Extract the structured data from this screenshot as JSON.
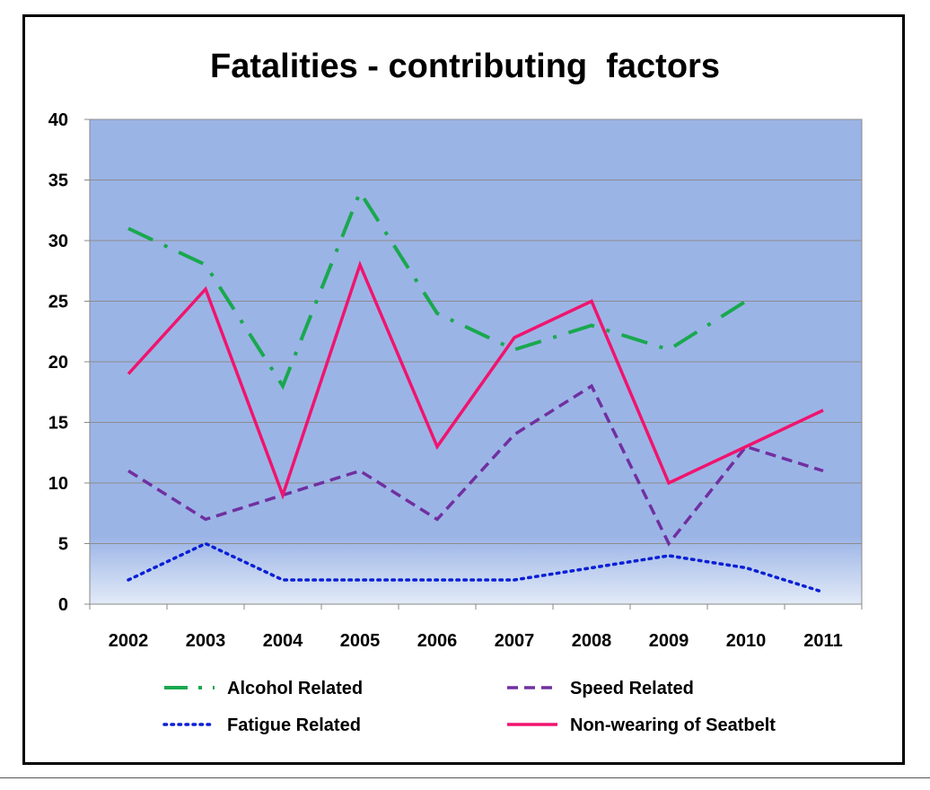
{
  "chart_data": {
    "type": "line",
    "title": "Fatalities - contributing  factors",
    "xlabel": "",
    "ylabel": "",
    "categories": [
      "2002",
      "2003",
      "2004",
      "2005",
      "2006",
      "2007",
      "2008",
      "2009",
      "2010",
      "2011"
    ],
    "ylim": [
      0,
      40
    ],
    "yticks": [
      0,
      5,
      10,
      15,
      20,
      25,
      30,
      35,
      40
    ],
    "grid": true,
    "legend_position": "bottom",
    "series": [
      {
        "name": "Alcohol Related",
        "color": "#1aa84f",
        "dash": "dash-dot",
        "values": [
          31,
          28,
          18,
          34,
          24,
          21,
          23,
          21,
          25,
          null
        ]
      },
      {
        "name": "Speed Related",
        "color": "#7030a0",
        "dash": "dash",
        "values": [
          11,
          7,
          9,
          11,
          7,
          14,
          18,
          5,
          13,
          11
        ]
      },
      {
        "name": "Fatigue Related",
        "color": "#0a1fd6",
        "dash": "dot",
        "values": [
          2,
          5,
          2,
          2,
          2,
          2,
          3,
          4,
          3,
          1
        ]
      },
      {
        "name": "Non-wearing of Seatbelt",
        "color": "#f0146e",
        "dash": "solid",
        "values": [
          19,
          26,
          9,
          28,
          13,
          22,
          25,
          10,
          13,
          16
        ]
      }
    ],
    "plot_background_color": "#9bb4e6"
  }
}
